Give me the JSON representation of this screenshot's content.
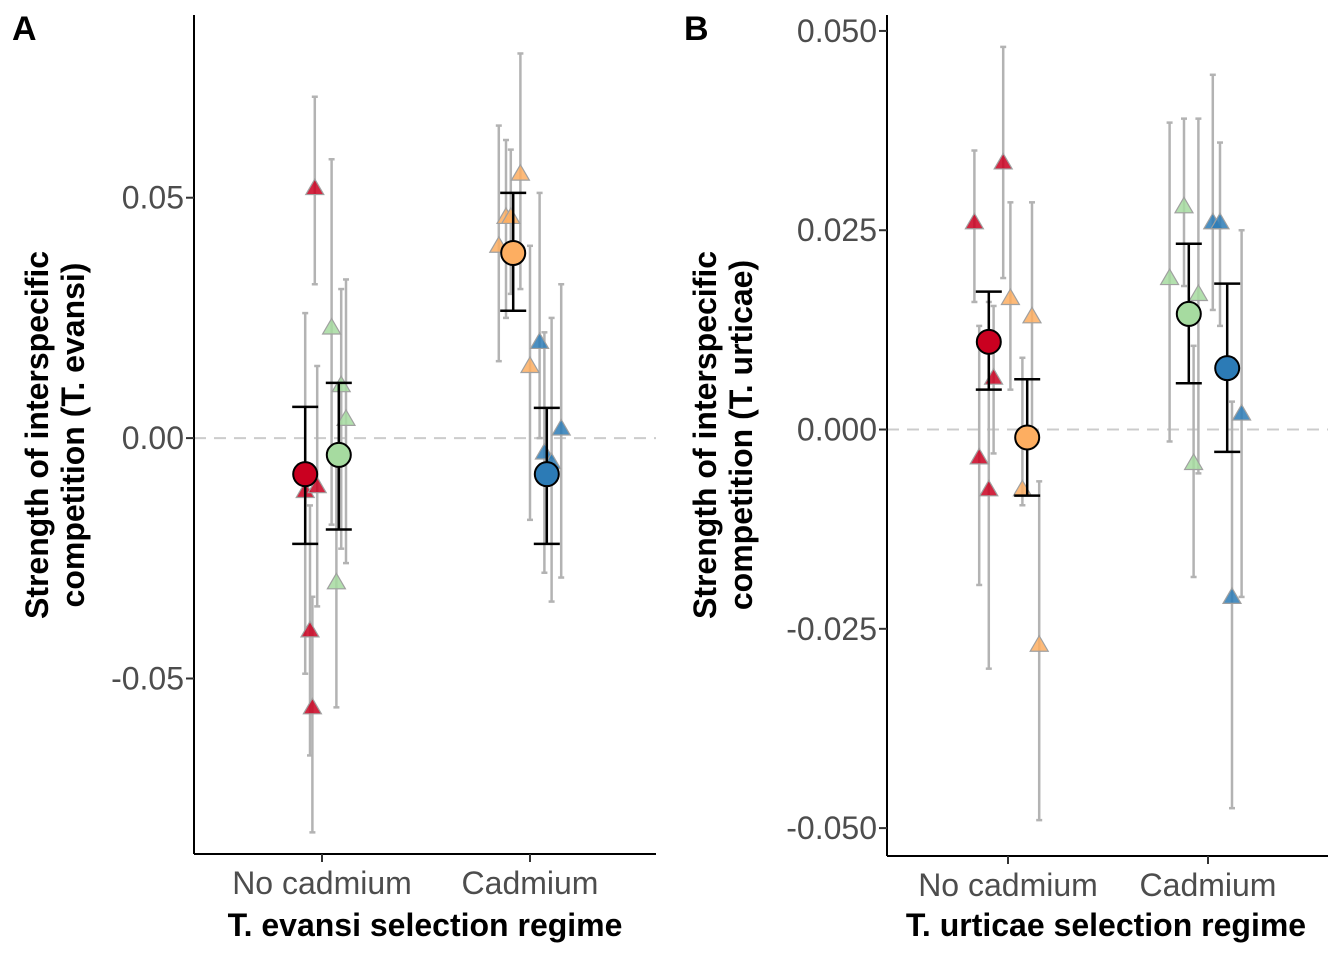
{
  "chart_data": [
    {
      "type": "scatter",
      "panel_label": "A",
      "xlabel": "T. evansi selection regime",
      "ylabel_line1": "Strength of interspecific",
      "ylabel_line2": "competition (T. evansi)",
      "categories": [
        "No cadmium",
        "Cadmium"
      ],
      "ylim": [
        -0.0865,
        0.088
      ],
      "yticks": [
        0.05,
        0.0,
        -0.05
      ],
      "ytick_labels": [
        "0.05",
        "0.00",
        "-0.05"
      ],
      "reference_line": 0,
      "grid": false,
      "colors": {
        "red": "#ca0020",
        "orange": "#fdae61",
        "green": "#a6dba0",
        "blue": "#2c7bb6"
      },
      "replicates": [
        {
          "cat": 0,
          "off": -0.07,
          "y": -0.011,
          "lo": -0.049,
          "hi": 0.026,
          "color": "red"
        },
        {
          "cat": 0,
          "off": -0.03,
          "y": 0.052,
          "lo": 0.032,
          "hi": 0.071,
          "color": "red"
        },
        {
          "cat": 0,
          "off": -0.05,
          "y": -0.04,
          "lo": -0.066,
          "hi": -0.014,
          "color": "red"
        },
        {
          "cat": 0,
          "off": -0.04,
          "y": -0.056,
          "lo": -0.082,
          "hi": -0.033,
          "color": "red"
        },
        {
          "cat": 0,
          "off": -0.02,
          "y": -0.01,
          "lo": -0.035,
          "hi": 0.015,
          "color": "red"
        },
        {
          "cat": 0,
          "off": 0.04,
          "y": 0.023,
          "lo": -0.018,
          "hi": 0.058,
          "color": "green"
        },
        {
          "cat": 0,
          "off": 0.06,
          "y": -0.03,
          "lo": -0.056,
          "hi": -0.005,
          "color": "green"
        },
        {
          "cat": 0,
          "off": 0.08,
          "y": 0.011,
          "lo": -0.023,
          "hi": 0.031,
          "color": "green"
        },
        {
          "cat": 0,
          "off": 0.1,
          "y": 0.004,
          "lo": -0.026,
          "hi": 0.033,
          "color": "green"
        },
        {
          "cat": 1,
          "off": -0.13,
          "y": 0.04,
          "lo": 0.016,
          "hi": 0.065,
          "color": "orange"
        },
        {
          "cat": 1,
          "off": -0.1,
          "y": 0.046,
          "lo": 0.025,
          "hi": 0.062,
          "color": "orange"
        },
        {
          "cat": 1,
          "off": -0.08,
          "y": 0.046,
          "lo": 0.03,
          "hi": 0.06,
          "color": "orange"
        },
        {
          "cat": 1,
          "off": -0.04,
          "y": 0.055,
          "lo": 0.031,
          "hi": 0.08,
          "color": "orange"
        },
        {
          "cat": 1,
          "off": 0.0,
          "y": 0.015,
          "lo": -0.017,
          "hi": 0.04,
          "color": "orange"
        },
        {
          "cat": 1,
          "off": 0.04,
          "y": 0.02,
          "lo": 0.0,
          "hi": 0.051,
          "color": "blue"
        },
        {
          "cat": 1,
          "off": 0.06,
          "y": -0.003,
          "lo": -0.028,
          "hi": 0.022,
          "color": "blue"
        },
        {
          "cat": 1,
          "off": 0.09,
          "y": -0.005,
          "lo": -0.034,
          "hi": 0.025,
          "color": "blue"
        },
        {
          "cat": 1,
          "off": 0.13,
          "y": 0.002,
          "lo": -0.029,
          "hi": 0.032,
          "color": "blue"
        }
      ],
      "means": [
        {
          "cat": 0,
          "off": -0.07,
          "y": -0.0075,
          "lo": -0.022,
          "hi": 0.0065,
          "color": "red"
        },
        {
          "cat": 0,
          "off": 0.07,
          "y": -0.0035,
          "lo": -0.019,
          "hi": 0.0115,
          "color": "green"
        },
        {
          "cat": 1,
          "off": -0.07,
          "y": 0.0385,
          "lo": 0.0265,
          "hi": 0.051,
          "color": "orange"
        },
        {
          "cat": 1,
          "off": 0.07,
          "y": -0.0075,
          "lo": -0.022,
          "hi": 0.0063,
          "color": "blue"
        }
      ]
    },
    {
      "type": "scatter",
      "panel_label": "B",
      "xlabel": "T. urticae selection regime",
      "ylabel_line1": "Strength of interspecific",
      "ylabel_line2": "competition (T. urticae)",
      "categories": [
        "No cadmium",
        "Cadmium"
      ],
      "ylim": [
        -0.0535,
        0.052
      ],
      "yticks": [
        0.05,
        0.025,
        0.0,
        -0.025,
        -0.05
      ],
      "ytick_labels": [
        "0.050",
        "0.025",
        "0.000",
        "-0.025",
        "-0.050"
      ],
      "reference_line": 0,
      "grid": false,
      "colors": {
        "red": "#ca0020",
        "orange": "#fdae61",
        "green": "#a6dba0",
        "blue": "#2c7bb6"
      },
      "replicates": [
        {
          "cat": 0,
          "off": -0.14,
          "y": 0.026,
          "lo": 0.016,
          "hi": 0.035,
          "color": "red"
        },
        {
          "cat": 0,
          "off": -0.12,
          "y": -0.0035,
          "lo": -0.0195,
          "hi": 0.013,
          "color": "red"
        },
        {
          "cat": 0,
          "off": -0.08,
          "y": -0.0075,
          "lo": -0.03,
          "hi": 0.016,
          "color": "red"
        },
        {
          "cat": 0,
          "off": -0.06,
          "y": 0.0065,
          "lo": -0.003,
          "hi": 0.0155,
          "color": "red"
        },
        {
          "cat": 0,
          "off": -0.02,
          "y": 0.0335,
          "lo": 0.019,
          "hi": 0.048,
          "color": "red"
        },
        {
          "cat": 0,
          "off": 0.01,
          "y": 0.0165,
          "lo": 0.005,
          "hi": 0.0285,
          "color": "orange"
        },
        {
          "cat": 0,
          "off": 0.06,
          "y": -0.0075,
          "lo": -0.0095,
          "hi": 0.009,
          "color": "orange"
        },
        {
          "cat": 0,
          "off": 0.1,
          "y": 0.0142,
          "lo": 0.0,
          "hi": 0.0285,
          "color": "orange"
        },
        {
          "cat": 0,
          "off": 0.13,
          "y": -0.027,
          "lo": -0.049,
          "hi": -0.0065,
          "color": "orange"
        },
        {
          "cat": 1,
          "off": -0.16,
          "y": 0.019,
          "lo": -0.0015,
          "hi": 0.0385,
          "color": "green"
        },
        {
          "cat": 1,
          "off": -0.1,
          "y": 0.028,
          "lo": 0.018,
          "hi": 0.039,
          "color": "green"
        },
        {
          "cat": 1,
          "off": -0.06,
          "y": -0.0042,
          "lo": -0.0185,
          "hi": 0.0105,
          "color": "green"
        },
        {
          "cat": 1,
          "off": -0.04,
          "y": 0.017,
          "lo": -0.0055,
          "hi": 0.039,
          "color": "green"
        },
        {
          "cat": 1,
          "off": 0.02,
          "y": 0.026,
          "lo": 0.015,
          "hi": 0.0445,
          "color": "blue"
        },
        {
          "cat": 1,
          "off": 0.05,
          "y": 0.026,
          "lo": 0.013,
          "hi": 0.036,
          "color": "blue"
        },
        {
          "cat": 1,
          "off": 0.1,
          "y": -0.021,
          "lo": -0.0475,
          "hi": 0.0035,
          "color": "blue"
        },
        {
          "cat": 1,
          "off": 0.14,
          "y": 0.002,
          "lo": -0.021,
          "hi": 0.025,
          "color": "blue"
        }
      ],
      "means": [
        {
          "cat": 0,
          "off": -0.08,
          "y": 0.011,
          "lo": 0.005,
          "hi": 0.0173,
          "color": "red"
        },
        {
          "cat": 0,
          "off": 0.08,
          "y": -0.001,
          "lo": -0.0083,
          "hi": 0.0063,
          "color": "orange"
        },
        {
          "cat": 1,
          "off": -0.08,
          "y": 0.0145,
          "lo": 0.0058,
          "hi": 0.0233,
          "color": "green"
        },
        {
          "cat": 1,
          "off": 0.08,
          "y": 0.0077,
          "lo": -0.0028,
          "hi": 0.0183,
          "color": "blue"
        }
      ]
    }
  ]
}
